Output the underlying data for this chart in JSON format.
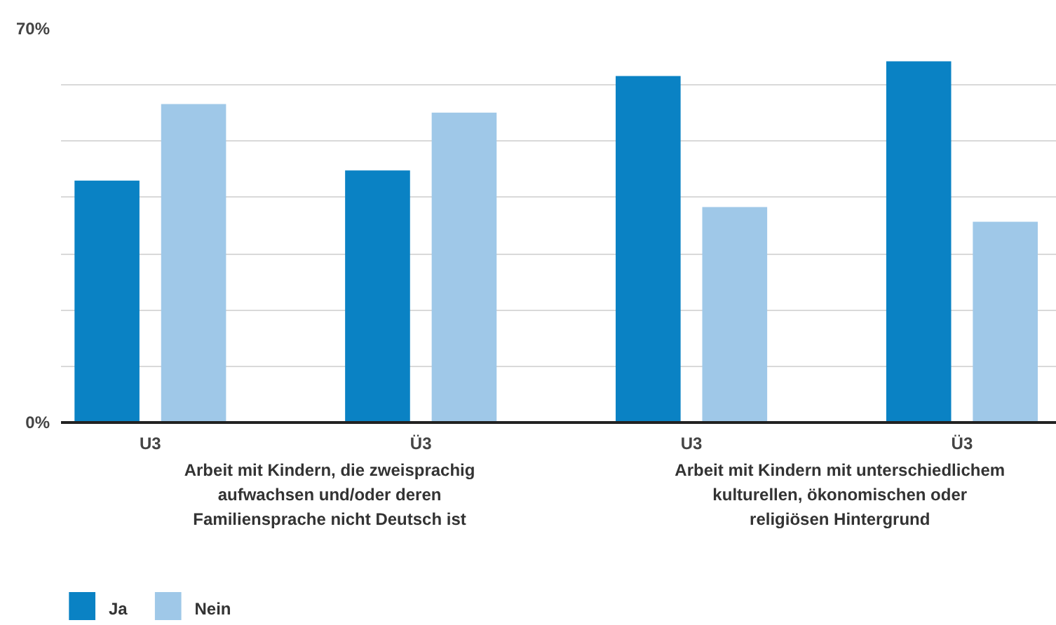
{
  "chart_data": {
    "type": "bar",
    "categories": [
      "U3",
      "Ü3",
      "U3",
      "Ü3"
    ],
    "series": [
      {
        "name": "Ja",
        "color": "#0a82c4",
        "values": [
          43.0,
          44.8,
          61.6,
          64.2
        ]
      },
      {
        "name": "Nein",
        "color": "#9fc8e8",
        "values": [
          56.6,
          55.1,
          38.3,
          35.7
        ]
      }
    ],
    "ylim": [
      0,
      70
    ],
    "yticks": [
      {
        "value": 0,
        "label": "0%"
      },
      {
        "value": 10,
        "label": null
      },
      {
        "value": 20,
        "label": null
      },
      {
        "value": 30,
        "label": null
      },
      {
        "value": 40,
        "label": null
      },
      {
        "value": 50,
        "label": null
      },
      {
        "value": 60,
        "label": null
      },
      {
        "value": 70,
        "label": "70%"
      }
    ],
    "grid": "y",
    "legend": "bottom left",
    "annotations": [
      "Arbeit mit Kindern, die zweisprachig aufwachsen und/oder deren Familiensprache nicht Deutsch ist",
      "Arbeit mit Kindern mit unterschiedlichem kulturellen, ökonomischen oder religiösen Hintergrund"
    ]
  }
}
